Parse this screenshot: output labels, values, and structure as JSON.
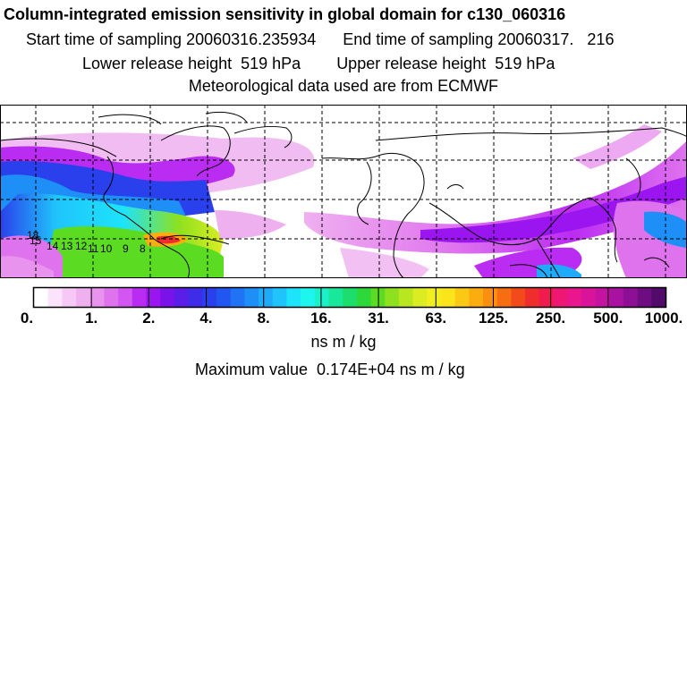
{
  "header": {
    "title": "Column-integrated emission sensitivity in global domain for c130_060316",
    "start_label": "Start time of sampling 20060316.235934",
    "end_label": "End time of sampling 20060317.   216",
    "lower_label": "Lower release height  519 hPa",
    "upper_label": "Upper release height  519 hPa",
    "met_label": "Meteorological data used are from ECMWF"
  },
  "map": {
    "track_labels": [
      "18",
      "15",
      "14",
      "13",
      "12",
      "11",
      "10",
      "9",
      "8"
    ],
    "grid": "dashed"
  },
  "colorbar": {
    "tick_labels": [
      "0.",
      "1.",
      "2.",
      "4.",
      "8.",
      "16.",
      "31.",
      "63.",
      "125.",
      "250.",
      "500.",
      "1000."
    ],
    "colors": [
      "#ffffff",
      "#fbe3fb",
      "#f5c8f5",
      "#efb0f0",
      "#e893ee",
      "#df73ee",
      "#d355f2",
      "#bb2cf2",
      "#9a15ef",
      "#7a12ea",
      "#5b1ee8",
      "#3d2ce8",
      "#2a40ec",
      "#2157f0",
      "#1f73f4",
      "#1e8ff7",
      "#1faafa",
      "#1fc4fc",
      "#1de3fb",
      "#1ef5ee",
      "#1bf0c8",
      "#19e89a",
      "#1bde6c",
      "#2dd93a",
      "#5bdc22",
      "#8ee11f",
      "#b8e71f",
      "#dcec22",
      "#f2ef20",
      "#fbe41a",
      "#fbc915",
      "#fbad10",
      "#fa8f10",
      "#f76e12",
      "#f24a1a",
      "#ef2d2d",
      "#f01b4f",
      "#ef1774",
      "#e9168e",
      "#d9149a",
      "#c412a1",
      "#a911a0",
      "#8c0f95",
      "#6e0d82",
      "#520b6a"
    ],
    "units": "ns m / kg"
  },
  "max_value_label": "Maximum value  0.174E+04 ns m / kg"
}
